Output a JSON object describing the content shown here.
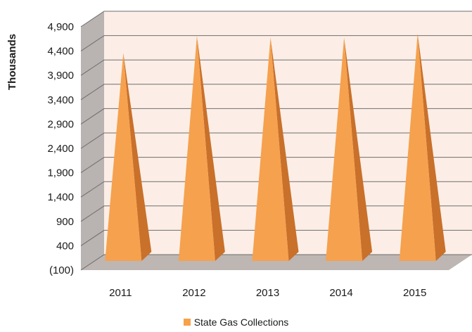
{
  "chart_data": {
    "type": "bar",
    "style": "3d-pyramid",
    "ylabel": "Thousands",
    "y_ticks": [
      "(100)",
      "400",
      "900",
      "1,400",
      "1,900",
      "2,400",
      "2,900",
      "3,400",
      "3,900",
      "4,400",
      "4,900"
    ],
    "ylim": [
      -100,
      4900
    ],
    "categories": [
      "2011",
      "2012",
      "2013",
      "2014",
      "2015"
    ],
    "series": [
      {
        "name": "State Gas Collections",
        "values": [
          4100,
          4450,
          4420,
          4420,
          4500
        ]
      }
    ],
    "grid": true,
    "legend_position": "bottom",
    "colors": {
      "pyramid_front": "#F6A14E",
      "pyramid_side": "#C9702A",
      "wall": "#FCEEE6",
      "side_wall": "#B9B3B1",
      "floor": "#BDB6B3",
      "gridline": "#6e6e6e",
      "legend_swatch": "#F7A14A"
    }
  }
}
